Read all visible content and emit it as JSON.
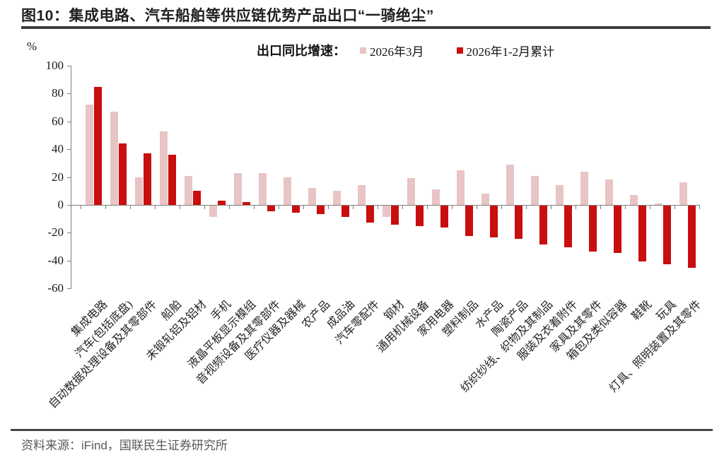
{
  "figure": {
    "title": "图10：集成电路、汽车船舶等供应链优势产品出口“一骑绝尘”",
    "source": "资料来源：iFind，国联民生证券研究所"
  },
  "chart_data": {
    "type": "bar",
    "legend_title": "出口同比增速：",
    "legend_position": "top-center",
    "grid": false,
    "xlabel": "",
    "ylabel": "%",
    "ylim": [
      -60,
      100
    ],
    "yticks": [
      100,
      80,
      60,
      40,
      20,
      0,
      -20,
      -40,
      -60
    ],
    "categories": [
      "集成电路",
      "汽车(包括底盘)",
      "自动数据处理设备及其零部件",
      "船舶",
      "未锻轧铝及铝材",
      "手机",
      "液晶平板显示模组",
      "音视频设备及其零部件",
      "医疗仪器及器械",
      "农产品",
      "成品油",
      "汽车零配件",
      "钢材",
      "通用机械设备",
      "家用电器",
      "塑料制品",
      "水产品",
      "陶瓷产品",
      "纺织纱线、织物及其制品",
      "服装及衣着附件",
      "家具及其零件",
      "箱包及类似容器",
      "鞋靴",
      "玩具",
      "灯具、照明装置及其零件"
    ],
    "series": [
      {
        "name": "2026年3月",
        "color": "#E9C4C5",
        "values": [
          72,
          67,
          20,
          53,
          21,
          -8,
          23,
          23,
          20,
          12,
          10,
          14,
          -8,
          19,
          11,
          25,
          8,
          29,
          21,
          14,
          24,
          18,
          7,
          1,
          16
        ]
      },
      {
        "name": "2026年1-2月累计",
        "color": "#C90E0E",
        "values": [
          85,
          44,
          37,
          36,
          10,
          3,
          2,
          -4,
          -5,
          -6,
          -8,
          -12,
          -14,
          -15,
          -16,
          -22,
          -23,
          -24,
          -28,
          -30,
          -33,
          -34,
          -40,
          -42,
          -45
        ]
      }
    ]
  },
  "colors": {
    "bar_march": "#E9C4C5",
    "bar_cumulative": "#C90E0E",
    "title_text": "#1F1F1F",
    "rule": "#3D3D3D",
    "axis": "#7F7F7F",
    "source_text": "#595959"
  }
}
